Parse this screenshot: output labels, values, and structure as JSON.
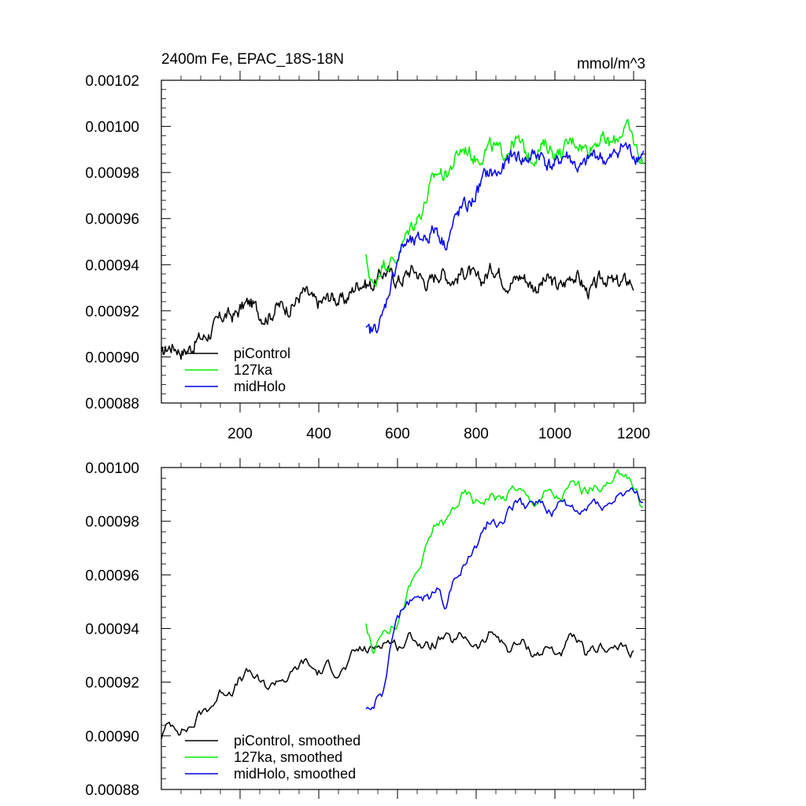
{
  "chart_data": [
    {
      "type": "line",
      "title": "2400m Fe, EPAC_18S-18N",
      "units": "mmol/m^3",
      "xlim": [
        0,
        1230
      ],
      "ylim": [
        0.00088,
        0.00102
      ],
      "xticks": [
        200,
        400,
        600,
        800,
        1000,
        1200
      ],
      "xtick_labels": [
        "200",
        "400",
        "600",
        "800",
        "1000",
        "1200"
      ],
      "yticks": [
        0.00088,
        0.0009,
        0.00092,
        0.00094,
        0.00096,
        0.00098,
        0.001,
        0.00102
      ],
      "ytick_labels": [
        "0.00088",
        "0.00090",
        "0.00092",
        "0.00094",
        "0.00096",
        "0.00098",
        "0.00100",
        "0.00102"
      ],
      "smoothed": false,
      "series": [
        {
          "name": "piControl",
          "color": "#000000",
          "x": [
            0,
            40,
            80,
            120,
            160,
            200,
            240,
            280,
            320,
            360,
            400,
            440,
            480,
            520,
            560,
            600,
            640,
            680,
            720,
            760,
            800,
            840,
            880,
            920,
            960,
            1000,
            1040,
            1080,
            1120,
            1160,
            1200
          ],
          "y": [
            0.0009,
            0.000905,
            0.000903,
            0.000912,
            0.000916,
            0.000922,
            0.000921,
            0.000918,
            0.000923,
            0.000926,
            0.000925,
            0.000924,
            0.000928,
            0.000932,
            0.000935,
            0.000935,
            0.000936,
            0.000934,
            0.000935,
            0.000936,
            0.000934,
            0.000937,
            0.000934,
            0.000933,
            0.000932,
            0.000931,
            0.000935,
            0.00093,
            0.000932,
            0.000934,
            0.00093
          ]
        },
        {
          "name": "127ka",
          "color": "#00ee00",
          "x": [
            520,
            540,
            560,
            580,
            600,
            620,
            640,
            660,
            680,
            700,
            720,
            740,
            760,
            780,
            800,
            830,
            860,
            900,
            940,
            980,
            1020,
            1060,
            1100,
            1140,
            1180,
            1200,
            1225
          ],
          "y": [
            0.000944,
            0.00093,
            0.000938,
            0.000942,
            0.000945,
            0.00095,
            0.000957,
            0.000965,
            0.000972,
            0.000978,
            0.00098,
            0.000985,
            0.000988,
            0.000989,
            0.000988,
            0.000989,
            0.00099,
            0.000992,
            0.000988,
            0.00099,
            0.00099,
            0.000993,
            0.000992,
            0.000994,
            0.000998,
            0.000994,
            0.000986
          ]
        },
        {
          "name": "midHolo",
          "color": "#0000ee",
          "x": [
            520,
            540,
            560,
            580,
            600,
            620,
            640,
            660,
            680,
            700,
            720,
            740,
            760,
            780,
            800,
            830,
            860,
            900,
            940,
            980,
            1020,
            1060,
            1100,
            1140,
            1180,
            1200,
            1225
          ],
          "y": [
            0.000912,
            0.00091,
            0.000915,
            0.000932,
            0.000943,
            0.000947,
            0.00095,
            0.000953,
            0.000951,
            0.000955,
            0.000951,
            0.000956,
            0.000962,
            0.000967,
            0.000972,
            0.000978,
            0.000982,
            0.000986,
            0.000988,
            0.000984,
            0.000986,
            0.000983,
            0.000986,
            0.000987,
            0.00099,
            0.00099,
            0.000988
          ]
        }
      ]
    },
    {
      "type": "line",
      "title": "",
      "units": "",
      "xlim": [
        0,
        1230
      ],
      "ylim": [
        0.00088,
        0.001
      ],
      "xticks": [
        200,
        400,
        600,
        800,
        1000,
        1200
      ],
      "xtick_labels": [],
      "yticks": [
        0.00088,
        0.0009,
        0.00092,
        0.00094,
        0.00096,
        0.00098,
        0.001
      ],
      "ytick_labels": [
        "0.00088",
        "0.00090",
        "0.00092",
        "0.00094",
        "0.00096",
        "0.00098",
        "0.00100"
      ],
      "smoothed": true,
      "series": [
        {
          "name": "piControl, smoothed",
          "color": "#000000",
          "x": [
            0,
            40,
            80,
            120,
            160,
            200,
            240,
            280,
            320,
            360,
            400,
            440,
            480,
            520,
            560,
            600,
            640,
            680,
            720,
            760,
            800,
            840,
            880,
            920,
            960,
            1000,
            1040,
            1080,
            1120,
            1160,
            1200
          ],
          "y": [
            0.0009,
            0.000905,
            0.000903,
            0.000912,
            0.000916,
            0.000922,
            0.000921,
            0.000918,
            0.000923,
            0.000926,
            0.000925,
            0.000924,
            0.000928,
            0.000932,
            0.000935,
            0.000935,
            0.000936,
            0.000934,
            0.000935,
            0.000936,
            0.000934,
            0.000937,
            0.000934,
            0.000933,
            0.000932,
            0.000931,
            0.000935,
            0.00093,
            0.000932,
            0.000934,
            0.00093
          ]
        },
        {
          "name": "127ka, smoothed",
          "color": "#00ee00",
          "x": [
            520,
            540,
            560,
            580,
            600,
            620,
            640,
            660,
            680,
            700,
            720,
            740,
            760,
            780,
            800,
            830,
            860,
            900,
            940,
            980,
            1020,
            1060,
            1100,
            1140,
            1180,
            1200,
            1225
          ],
          "y": [
            0.000944,
            0.00093,
            0.000938,
            0.000942,
            0.000945,
            0.00095,
            0.000957,
            0.000965,
            0.000972,
            0.000978,
            0.00098,
            0.000985,
            0.000988,
            0.000989,
            0.000988,
            0.000989,
            0.00099,
            0.000992,
            0.000988,
            0.00099,
            0.00099,
            0.000993,
            0.000992,
            0.000994,
            0.000998,
            0.000994,
            0.000986
          ]
        },
        {
          "name": "midHolo, smoothed",
          "color": "#0000ee",
          "x": [
            520,
            540,
            560,
            580,
            600,
            620,
            640,
            660,
            680,
            700,
            720,
            740,
            760,
            780,
            800,
            830,
            860,
            900,
            940,
            980,
            1020,
            1060,
            1100,
            1140,
            1180,
            1200,
            1225
          ],
          "y": [
            0.000912,
            0.00091,
            0.000915,
            0.000932,
            0.000943,
            0.000947,
            0.00095,
            0.000953,
            0.000951,
            0.000955,
            0.000951,
            0.000956,
            0.000962,
            0.000967,
            0.000972,
            0.000978,
            0.000982,
            0.000986,
            0.000988,
            0.000984,
            0.000986,
            0.000983,
            0.000986,
            0.000987,
            0.00099,
            0.00099,
            0.000988
          ]
        }
      ]
    }
  ]
}
